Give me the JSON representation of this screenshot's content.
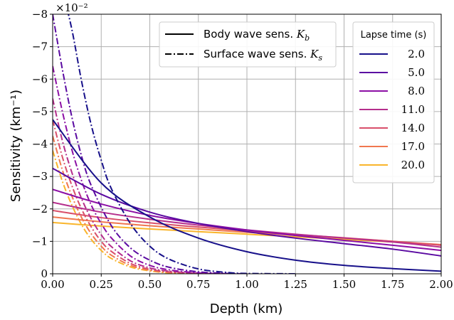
{
  "chart_data": {
    "type": "line",
    "xlabel": "Depth (km)",
    "ylabel": "Sensitivity (km⁻¹)",
    "scale_label": "×10⁻²",
    "xlim": [
      0.0,
      2.0
    ],
    "ylim": [
      0,
      -8
    ],
    "y_units": "×10⁻² km⁻¹",
    "grid": true,
    "x_ticks": [
      "0.00",
      "0.25",
      "0.50",
      "0.75",
      "1.00",
      "1.25",
      "1.50",
      "1.75",
      "2.00"
    ],
    "y_ticks": [
      "0",
      "−1",
      "−2",
      "−3",
      "−4",
      "−5",
      "−6",
      "−7",
      "−8"
    ],
    "style_legend": {
      "placement": "top-center",
      "entries": [
        {
          "label": "Body wave sens. K_b",
          "label_text": "Body wave sens. ",
          "symbol": "K",
          "sub": "b",
          "linestyle": "solid"
        },
        {
          "label": "Surface wave sens. K_s",
          "label_text": "Surface wave sens. ",
          "symbol": "K",
          "sub": "s",
          "linestyle": "dashdot"
        }
      ]
    },
    "color_legend": {
      "placement": "top-right",
      "title": "Lapse time (s)",
      "entries": [
        "2.0",
        "5.0",
        "8.0",
        "11.0",
        "14.0",
        "17.0",
        "20.0"
      ]
    },
    "series": [
      {
        "lapse_time": 2.0,
        "color": "#17108a",
        "body": {
          "x": [
            0,
            0.25,
            0.5,
            0.75,
            1.0,
            1.25,
            1.5,
            1.75,
            2.0
          ],
          "y": [
            -4.75,
            -2.8,
            -1.75,
            -1.1,
            -0.68,
            -0.42,
            -0.26,
            -0.16,
            -0.08
          ]
        },
        "surface": {
          "x": [
            0.06,
            0.1,
            0.15,
            0.2,
            0.25,
            0.3,
            0.4,
            0.5,
            0.6,
            0.75,
            0.9,
            1.0,
            1.25
          ],
          "y": [
            -8.5,
            -7.5,
            -5.9,
            -4.55,
            -3.5,
            -2.65,
            -1.55,
            -0.85,
            -0.45,
            -0.15,
            -0.04,
            -0.01,
            0
          ]
        }
      },
      {
        "lapse_time": 5.0,
        "color": "#5a0aa1",
        "body": {
          "x": [
            0,
            0.25,
            0.5,
            0.75,
            1.0,
            1.25,
            1.5,
            1.75,
            2.0
          ],
          "y": [
            -3.25,
            -2.45,
            -1.9,
            -1.55,
            -1.3,
            -1.1,
            -0.93,
            -0.76,
            -0.55
          ]
        },
        "surface": {
          "x": [
            0.0,
            0.05,
            0.1,
            0.15,
            0.2,
            0.3,
            0.4,
            0.5,
            0.6,
            0.75,
            0.9,
            1.0
          ],
          "y": [
            -8.0,
            -6.3,
            -4.8,
            -3.6,
            -2.7,
            -1.5,
            -0.8,
            -0.42,
            -0.2,
            -0.06,
            -0.01,
            0
          ]
        }
      },
      {
        "lapse_time": 8.0,
        "color": "#8c0fa5",
        "body": {
          "x": [
            0,
            0.25,
            0.5,
            0.75,
            1.0,
            1.25,
            1.5,
            1.75,
            2.0
          ],
          "y": [
            -2.6,
            -2.15,
            -1.8,
            -1.55,
            -1.35,
            -1.18,
            -1.03,
            -0.88,
            -0.72
          ]
        },
        "surface": {
          "x": [
            0.0,
            0.05,
            0.1,
            0.15,
            0.2,
            0.25,
            0.3,
            0.4,
            0.5,
            0.6,
            0.75,
            0.9
          ],
          "y": [
            -6.4,
            -5.0,
            -3.8,
            -2.85,
            -2.1,
            -1.55,
            -1.12,
            -0.55,
            -0.26,
            -0.12,
            -0.03,
            0
          ]
        }
      },
      {
        "lapse_time": 11.0,
        "color": "#b52e8c",
        "body": {
          "x": [
            0,
            0.25,
            0.5,
            0.75,
            1.0,
            1.25,
            1.5,
            1.75,
            2.0
          ],
          "y": [
            -2.2,
            -1.9,
            -1.68,
            -1.5,
            -1.35,
            -1.22,
            -1.1,
            -0.98,
            -0.82
          ]
        },
        "surface": {
          "x": [
            0.0,
            0.05,
            0.1,
            0.15,
            0.2,
            0.25,
            0.3,
            0.4,
            0.5,
            0.6,
            0.75,
            0.9
          ],
          "y": [
            -5.4,
            -4.1,
            -3.1,
            -2.3,
            -1.68,
            -1.2,
            -0.85,
            -0.4,
            -0.18,
            -0.08,
            -0.02,
            0
          ]
        }
      },
      {
        "lapse_time": 14.0,
        "color": "#d94f6a",
        "body": {
          "x": [
            0,
            0.25,
            0.5,
            0.75,
            1.0,
            1.25,
            1.5,
            1.75,
            2.0
          ],
          "y": [
            -1.95,
            -1.73,
            -1.57,
            -1.44,
            -1.32,
            -1.21,
            -1.11,
            -1.0,
            -0.88
          ]
        },
        "surface": {
          "x": [
            0.0,
            0.05,
            0.1,
            0.15,
            0.2,
            0.25,
            0.3,
            0.4,
            0.5,
            0.6,
            0.75,
            0.9
          ],
          "y": [
            -4.75,
            -3.6,
            -2.7,
            -1.98,
            -1.43,
            -1.0,
            -0.7,
            -0.32,
            -0.14,
            -0.06,
            -0.01,
            0
          ]
        }
      },
      {
        "lapse_time": 17.0,
        "color": "#f0774f",
        "body": {
          "x": [
            0,
            0.25,
            0.5,
            0.75,
            1.0,
            1.25,
            1.5,
            1.75,
            2.0
          ],
          "y": [
            -1.75,
            -1.6,
            -1.48,
            -1.38,
            -1.28,
            -1.19,
            -1.1,
            -1.0,
            -0.9
          ]
        },
        "surface": {
          "x": [
            0.0,
            0.05,
            0.1,
            0.15,
            0.2,
            0.25,
            0.3,
            0.4,
            0.5,
            0.6,
            0.75,
            0.9
          ],
          "y": [
            -4.25,
            -3.2,
            -2.38,
            -1.72,
            -1.22,
            -0.85,
            -0.58,
            -0.26,
            -0.11,
            -0.04,
            -0.01,
            0
          ]
        }
      },
      {
        "lapse_time": 20.0,
        "color": "#f9b52b",
        "body": {
          "x": [
            0,
            0.25,
            0.5,
            0.75,
            1.0,
            1.25,
            1.5,
            1.75,
            2.0
          ],
          "y": [
            -1.58,
            -1.47,
            -1.38,
            -1.3,
            -1.22,
            -1.14,
            -1.06,
            -0.98,
            -0.89
          ]
        },
        "surface": {
          "x": [
            0.0,
            0.05,
            0.1,
            0.15,
            0.2,
            0.25,
            0.3,
            0.4,
            0.5,
            0.6,
            0.75,
            0.9
          ],
          "y": [
            -3.8,
            -2.85,
            -2.1,
            -1.5,
            -1.05,
            -0.72,
            -0.48,
            -0.21,
            -0.09,
            -0.03,
            -0.01,
            0
          ]
        }
      }
    ]
  }
}
